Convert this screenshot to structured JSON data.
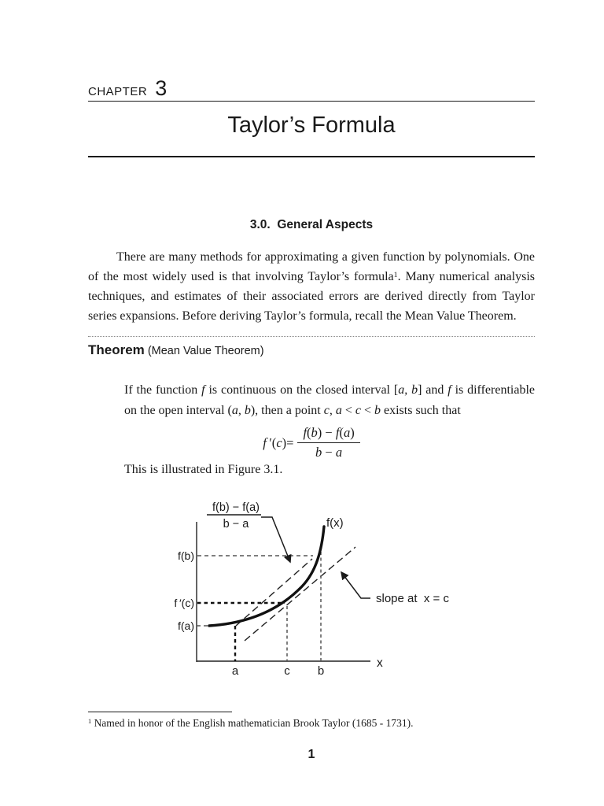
{
  "colors": {
    "ink": "#1a1a1a",
    "guide_gray": "#555555"
  },
  "header": {
    "chapter_label": "CHAPTER",
    "chapter_number": "3",
    "title": "Taylor’s Formula"
  },
  "section": {
    "heading": "3.0.  General Aspects"
  },
  "intro": {
    "segments": [
      {
        "t": "There are many methods for approximating a given function by polynomials. One of the most widely used is that involving Taylor’s formula"
      },
      {
        "t": "1",
        "sup": true
      },
      {
        "t": ". Many numerical analysis techniques, and estimates of their associated errors are derived directly from Taylor series expansions. Before deriving Taylor’s formula, recall the Mean Value Theorem."
      }
    ]
  },
  "theorem": {
    "keyword": "Theorem",
    "qualifier": " (Mean Value Theorem)",
    "body_segments": [
      {
        "t": "If the function "
      },
      {
        "t": "f",
        "i": true
      },
      {
        "t": " is continuous on the closed interval ["
      },
      {
        "t": "a",
        "i": true
      },
      {
        "t": ", "
      },
      {
        "t": "b",
        "i": true
      },
      {
        "t": "] and "
      },
      {
        "t": "f",
        "i": true
      },
      {
        "t": " is differentiable on the open interval ("
      },
      {
        "t": "a",
        "i": true
      },
      {
        "t": ", "
      },
      {
        "t": "b",
        "i": true
      },
      {
        "t": "), then a point "
      },
      {
        "t": "c",
        "i": true
      },
      {
        "t": ", "
      },
      {
        "t": "a",
        "i": true
      },
      {
        "t": " < "
      },
      {
        "t": "c",
        "i": true
      },
      {
        "t": " < "
      },
      {
        "t": "b",
        "i": true
      },
      {
        "t": " exists such that"
      }
    ]
  },
  "formula": {
    "lhs_segments": [
      {
        "t": "f",
        "i": true
      },
      {
        "t": " ′("
      },
      {
        "t": "c",
        "i": true
      },
      {
        "t": ")="
      }
    ],
    "numerator_segments": [
      {
        "t": "f",
        "i": true
      },
      {
        "t": "("
      },
      {
        "t": "b",
        "i": true
      },
      {
        "t": ") − "
      },
      {
        "t": "f",
        "i": true
      },
      {
        "t": "("
      },
      {
        "t": "a",
        "i": true
      },
      {
        "t": ")"
      }
    ],
    "denominator_segments": [
      {
        "t": "b",
        "i": true
      },
      {
        "t": " − "
      },
      {
        "t": "a",
        "i": true
      }
    ]
  },
  "figure_sentence": "This is illustrated in Figure 3.1.",
  "figure": {
    "frac_numerator": "f(b) − f(a)",
    "frac_denominator": "b − a",
    "curve_label": "f(x)",
    "y_label_fb": "f(b)",
    "y_label_fpc": "f ′(c)",
    "y_label_fa": "f(a)",
    "x_label_a": "a",
    "x_label_c": "c",
    "x_label_b": "b",
    "axis_x_label": "x",
    "slope_label": "slope at  x = c"
  },
  "footnote": {
    "segments": [
      {
        "t": "1",
        "sup": true
      },
      {
        "t": " Named in honor of the English mathematician Brook Taylor (1685 - 1731)."
      }
    ]
  },
  "page": {
    "number": "1"
  }
}
